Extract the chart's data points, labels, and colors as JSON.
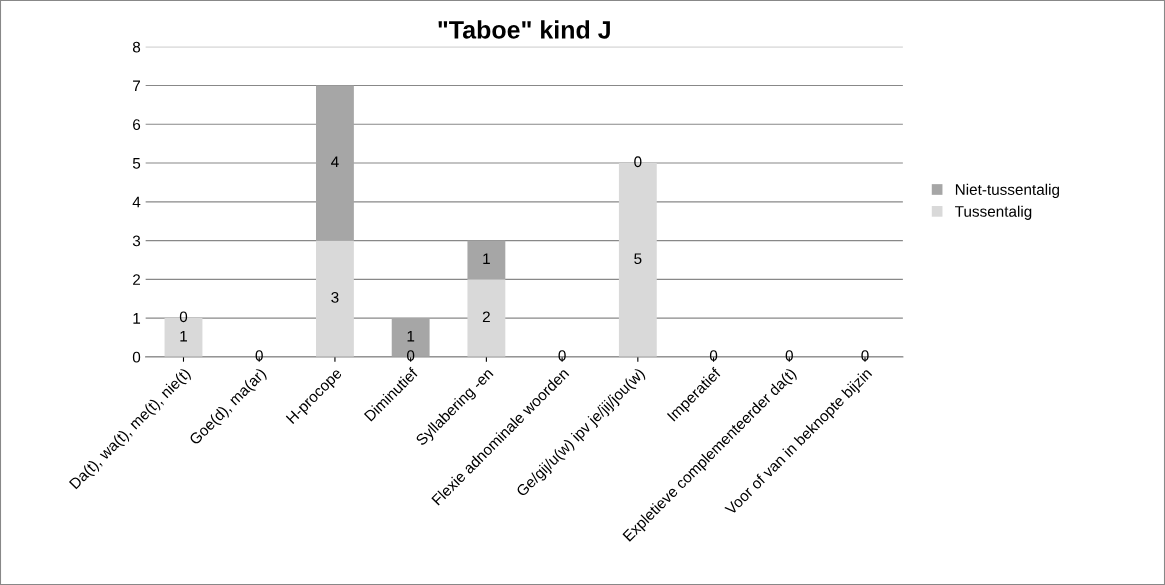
{
  "chart_data": {
    "type": "bar",
    "title": "\"Taboe\" kind J",
    "stacked": true,
    "categories": [
      "Da(t), wa(t), me(t), nie(t)",
      "Goe(d), ma(ar)",
      "H-procope",
      "Diminutief",
      "Syllabering -en",
      "Flexie adnominale woorden",
      "Ge/gij/u(w) ipv je/jij/jou(w)",
      "Imperatief",
      "Expletieve complementeerder da(t)",
      "Voor of van in beknopte bijzin"
    ],
    "series": [
      {
        "name": "Tussentalig",
        "color": "#d9d9d9",
        "values": [
          1,
          0,
          3,
          0,
          2,
          0,
          5,
          0,
          0,
          0
        ],
        "value_labels": [
          "1",
          "0",
          "3",
          "0",
          "2",
          "0",
          "5",
          "0",
          "0",
          "0"
        ]
      },
      {
        "name": "Niet-tussentalig",
        "color": "#a6a6a6",
        "values": [
          0,
          0,
          4,
          1,
          1,
          0,
          0,
          0,
          0,
          0
        ],
        "value_labels": [
          "0",
          null,
          "4",
          "1",
          "1",
          null,
          "0",
          null,
          null,
          null
        ]
      }
    ],
    "ylim": [
      0,
      8
    ],
    "yticks": [
      0,
      1,
      2,
      3,
      4,
      5,
      6,
      7,
      8
    ],
    "grid": "y",
    "legend": "right"
  }
}
